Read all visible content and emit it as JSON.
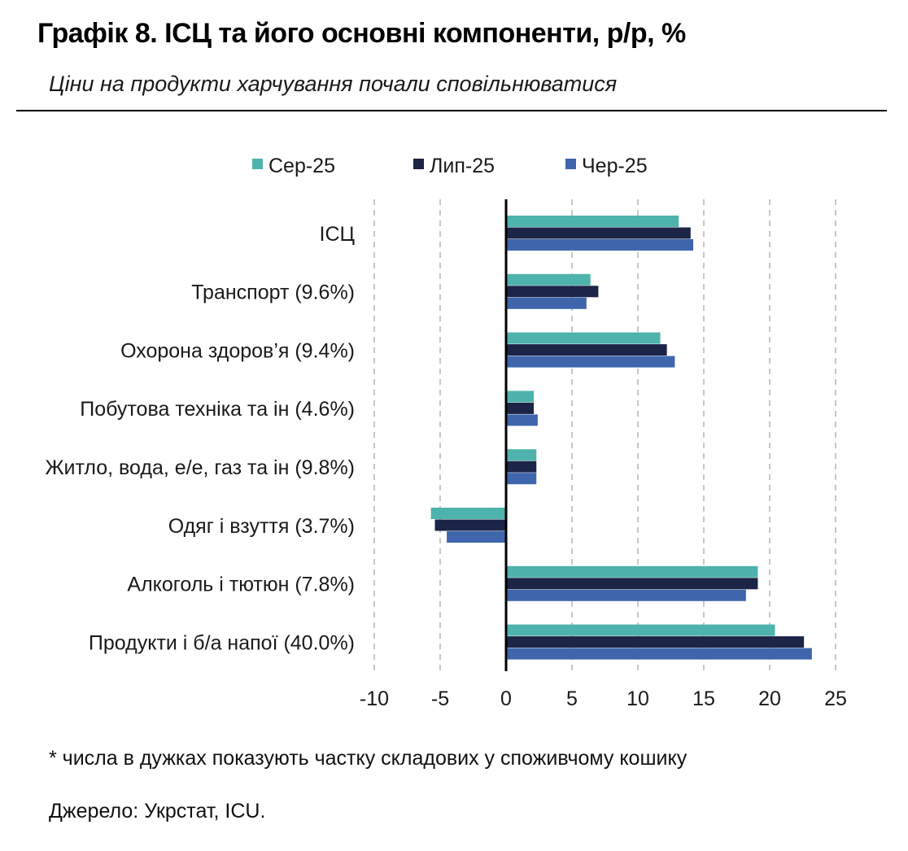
{
  "header": {
    "title": "Графік 8. ІСЦ та його основні компоненти, р/р, %",
    "subtitle": "Ціни на продукти харчування почали сповільнюватися"
  },
  "footer": {
    "note": "* числа в дужках показують частку складових у споживчому кошику",
    "source": "Джерело: Укрстат, ICU."
  },
  "colors": {
    "accent_teal": "#4db3ac",
    "dark_navy": "#1c2447",
    "mid_blue": "#3f66ad",
    "grid": "#c8c8c8"
  },
  "chart_data": {
    "type": "bar",
    "orientation": "horizontal",
    "categories": [
      "ІСЦ",
      "Транспорт (9.6%)",
      "Охорона здоров’я (9.4%)",
      "Побутова техніка та ін (4.6%)",
      "Житло, вода, е/е, газ та ін (9.8%)",
      "Одяг і взуття (3.7%)",
      "Алкоголь і тютюн (7.8%)",
      "Продукти і б/а напої (40.0%)"
    ],
    "series": [
      {
        "name": "Сер-25",
        "color": "#4db3ac",
        "values": [
          13.1,
          6.4,
          11.7,
          2.1,
          2.3,
          -5.7,
          19.1,
          20.4
        ]
      },
      {
        "name": "Лип-25",
        "color": "#1c2447",
        "values": [
          14.0,
          7.0,
          12.2,
          2.1,
          2.3,
          -5.4,
          19.1,
          22.6
        ]
      },
      {
        "name": "Чер-25",
        "color": "#3f66ad",
        "values": [
          14.2,
          6.1,
          12.8,
          2.4,
          2.3,
          -4.5,
          18.2,
          23.2
        ]
      }
    ],
    "xlim": [
      -10,
      25
    ],
    "xticks": [
      "-10",
      "-5",
      "0",
      "5",
      "10",
      "15",
      "20",
      "25"
    ],
    "xtick_values": [
      -10,
      -5,
      0,
      5,
      10,
      15,
      20,
      25
    ],
    "grid": "vertical dashed",
    "legend": "top"
  }
}
